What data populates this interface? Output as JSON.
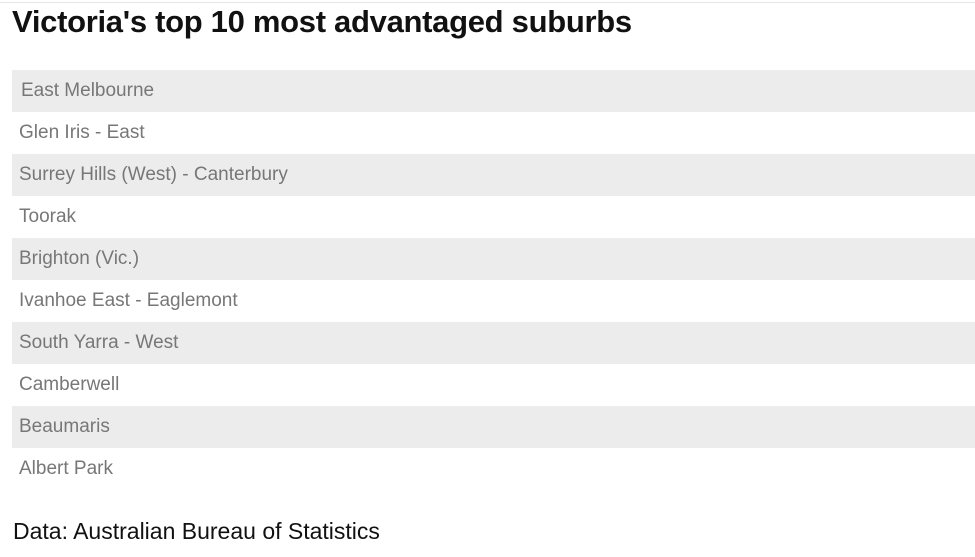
{
  "title": "Victoria's top 10 most advantaged suburbs",
  "suburbs": [
    "East Melbourne",
    "Glen Iris - East",
    "Surrey Hills (West) - Canterbury",
    "Toorak",
    "Brighton (Vic.)",
    "Ivanhoe East - Eaglemont",
    "South Yarra - West",
    "Camberwell",
    "Beaumaris",
    "Albert Park"
  ],
  "source": "Data: Australian Bureau of Statistics",
  "colors": {
    "stripe": "#ececec",
    "row_text": "#777777",
    "title_text": "#111111"
  }
}
